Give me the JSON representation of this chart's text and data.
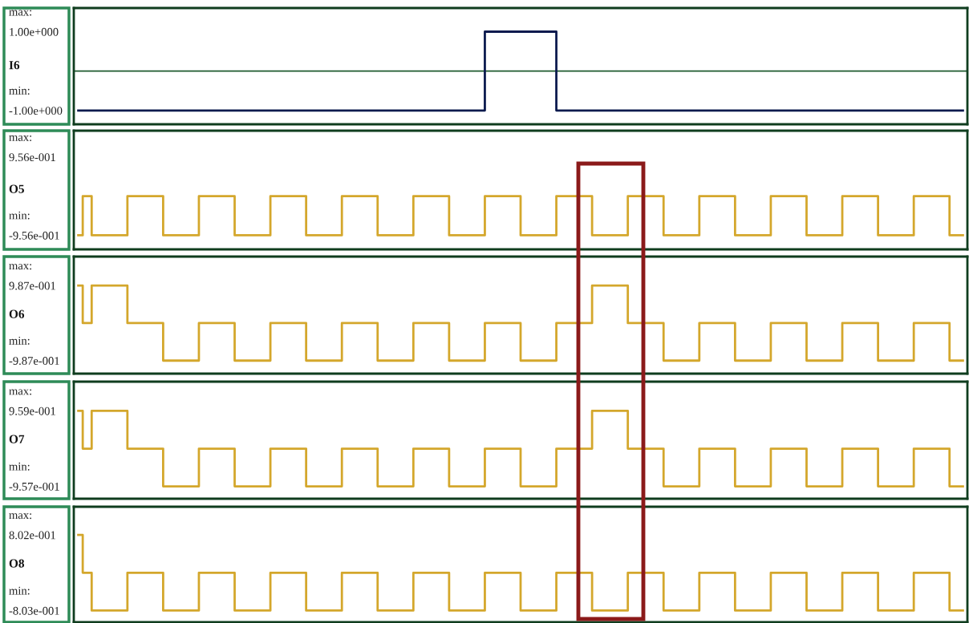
{
  "chart_data": [
    {
      "type": "step",
      "categories": [
        null,
        null,
        null,
        null,
        null,
        null,
        null,
        null,
        null,
        null,
        null,
        null,
        null,
        null,
        null,
        null,
        null,
        null,
        null,
        null,
        null,
        null,
        null,
        null,
        null,
        null,
        null,
        null,
        null,
        null,
        null,
        null,
        null,
        null,
        null,
        null,
        null,
        null,
        null,
        null,
        null,
        null,
        null,
        null,
        null,
        null,
        null,
        null,
        null,
        null,
        null,
        null,
        null,
        null,
        null,
        null,
        null,
        null,
        null,
        null,
        null,
        null,
        null,
        null,
        null,
        null,
        null,
        null,
        null,
        null,
        null,
        null,
        null,
        null,
        null,
        null,
        null,
        null,
        null,
        null,
        null,
        null,
        null,
        null,
        null,
        null,
        null,
        null,
        null,
        null,
        null,
        null,
        null,
        null,
        null,
        null,
        null,
        null,
        null,
        null
      ],
      "ylim": [
        -1.35,
        1.6
      ],
      "yticks": [
        {
          "value": 1,
          "label": "1.00e+000"
        },
        {
          "value": -1,
          "label": "-1.00e+000"
        }
      ],
      "annotations": [
        "max:",
        "min:"
      ],
      "tick_labels": "y",
      "ref_lines": [
        {
          "axis": "y",
          "value": 0,
          "color": "#1e5a2e"
        }
      ],
      "series": [
        {
          "name": "I6",
          "color": "#0b1a4e",
          "values": [
            -1,
            -1,
            -1,
            -1,
            -1,
            -1,
            -1,
            -1,
            -1,
            -1,
            -1,
            -1,
            -1,
            -1,
            -1,
            -1,
            -1,
            -1,
            -1,
            -1,
            -1,
            -1,
            -1,
            -1,
            -1,
            -1,
            -1,
            -1,
            -1,
            -1,
            -1,
            -1,
            -1,
            -1,
            -1,
            -1,
            -1,
            -1,
            -1,
            -1,
            -1,
            -1,
            -1,
            -1,
            -1,
            -1,
            1,
            1,
            1,
            1,
            1,
            1,
            1,
            1,
            -1,
            -1,
            -1,
            -1,
            -1,
            -1,
            -1,
            -1,
            -1,
            -1,
            -1,
            -1,
            -1,
            -1,
            -1,
            -1,
            -1,
            -1,
            -1,
            -1,
            -1,
            -1,
            -1,
            -1,
            -1,
            -1,
            -1,
            -1,
            -1,
            -1,
            -1,
            -1,
            -1,
            -1,
            -1,
            -1,
            -1,
            -1,
            -1,
            -1,
            -1,
            -1,
            -1,
            -1,
            -1,
            -1
          ]
        }
      ]
    },
    {
      "type": "step",
      "categories": [
        null,
        null,
        null,
        null,
        null,
        null,
        null,
        null,
        null,
        null,
        null,
        null,
        null,
        null,
        null,
        null,
        null,
        null,
        null,
        null,
        null,
        null,
        null,
        null,
        null,
        null,
        null,
        null,
        null,
        null,
        null,
        null,
        null,
        null,
        null,
        null,
        null,
        null,
        null,
        null,
        null,
        null,
        null,
        null,
        null,
        null,
        null,
        null,
        null,
        null,
        null,
        null,
        null,
        null,
        null,
        null,
        null,
        null,
        null,
        null,
        null,
        null,
        null,
        null,
        null,
        null,
        null,
        null,
        null,
        null,
        null,
        null,
        null,
        null,
        null,
        null,
        null,
        null,
        null,
        null,
        null,
        null,
        null,
        null,
        null,
        null,
        null,
        null,
        null,
        null,
        null,
        null,
        null,
        null,
        null,
        null,
        null,
        null,
        null,
        null
      ],
      "ylim": [
        -1.3,
        1.6
      ],
      "yticks": [
        {
          "value": 0.956,
          "label": "9.56e-001"
        },
        {
          "value": -0.956,
          "label": "-9.56e-001"
        }
      ],
      "annotations": [
        "max:",
        "min:"
      ],
      "tick_labels": "y",
      "series": [
        {
          "name": "O5",
          "color": "#d4a72c",
          "values": [
            -0.956,
            0,
            -0.956,
            -0.956,
            -0.956,
            -0.956,
            0,
            0,
            0,
            0,
            -0.956,
            -0.956,
            -0.956,
            -0.956,
            0,
            0,
            0,
            0,
            -0.956,
            -0.956,
            -0.956,
            -0.956,
            0,
            0,
            0,
            0,
            -0.956,
            -0.956,
            -0.956,
            -0.956,
            0,
            0,
            0,
            0,
            -0.956,
            -0.956,
            -0.956,
            -0.956,
            0,
            0,
            0,
            0,
            -0.956,
            -0.956,
            -0.956,
            -0.956,
            0,
            0,
            0,
            0,
            -0.956,
            -0.956,
            -0.956,
            -0.956,
            0,
            0,
            0,
            0,
            -0.956,
            -0.956,
            -0.956,
            -0.956,
            0,
            0,
            0,
            0,
            -0.956,
            -0.956,
            -0.956,
            -0.956,
            0,
            0,
            0,
            0,
            -0.956,
            -0.956,
            -0.956,
            -0.956,
            0,
            0,
            0,
            0,
            -0.956,
            -0.956,
            -0.956,
            -0.956,
            0,
            0,
            0,
            0,
            -0.956,
            -0.956,
            -0.956,
            -0.956,
            0,
            0,
            0,
            0,
            -0.956,
            -0.956
          ]
        }
      ]
    },
    {
      "type": "step",
      "categories": [
        null,
        null,
        null,
        null,
        null,
        null,
        null,
        null,
        null,
        null,
        null,
        null,
        null,
        null,
        null,
        null,
        null,
        null,
        null,
        null,
        null,
        null,
        null,
        null,
        null,
        null,
        null,
        null,
        null,
        null,
        null,
        null,
        null,
        null,
        null,
        null,
        null,
        null,
        null,
        null,
        null,
        null,
        null,
        null,
        null,
        null,
        null,
        null,
        null,
        null,
        null,
        null,
        null,
        null,
        null,
        null,
        null,
        null,
        null,
        null,
        null,
        null,
        null,
        null,
        null,
        null,
        null,
        null,
        null,
        null,
        null,
        null,
        null,
        null,
        null,
        null,
        null,
        null,
        null,
        null,
        null,
        null,
        null,
        null,
        null,
        null,
        null,
        null,
        null,
        null,
        null,
        null,
        null,
        null,
        null,
        null,
        null,
        null,
        null,
        null
      ],
      "ylim": [
        -1.33,
        1.75
      ],
      "yticks": [
        {
          "value": 0.987,
          "label": "9.87e-001"
        },
        {
          "value": -0.987,
          "label": "-9.87e-001"
        }
      ],
      "annotations": [
        "max:",
        "min:"
      ],
      "tick_labels": "y",
      "series": [
        {
          "name": "O6",
          "color": "#d4a72c",
          "values": [
            0.987,
            0,
            0.987,
            0.987,
            0.987,
            0.987,
            0,
            0,
            0,
            0,
            -0.987,
            -0.987,
            -0.987,
            -0.987,
            0,
            0,
            0,
            0,
            -0.987,
            -0.987,
            -0.987,
            -0.987,
            0,
            0,
            0,
            0,
            -0.987,
            -0.987,
            -0.987,
            -0.987,
            0,
            0,
            0,
            0,
            -0.987,
            -0.987,
            -0.987,
            -0.987,
            0,
            0,
            0,
            0,
            -0.987,
            -0.987,
            -0.987,
            -0.987,
            0,
            0,
            0,
            0,
            -0.987,
            -0.987,
            -0.987,
            -0.987,
            0,
            0,
            0,
            0,
            0.987,
            0.987,
            0.987,
            0.987,
            0,
            0,
            0,
            0,
            -0.987,
            -0.987,
            -0.987,
            -0.987,
            0,
            0,
            0,
            0,
            -0.987,
            -0.987,
            -0.987,
            -0.987,
            0,
            0,
            0,
            0,
            -0.987,
            -0.987,
            -0.987,
            -0.987,
            0,
            0,
            0,
            0,
            -0.987,
            -0.987,
            -0.987,
            -0.987,
            0,
            0,
            0,
            0,
            -0.987,
            -0.987
          ]
        }
      ]
    },
    {
      "type": "step",
      "categories": [
        null,
        null,
        null,
        null,
        null,
        null,
        null,
        null,
        null,
        null,
        null,
        null,
        null,
        null,
        null,
        null,
        null,
        null,
        null,
        null,
        null,
        null,
        null,
        null,
        null,
        null,
        null,
        null,
        null,
        null,
        null,
        null,
        null,
        null,
        null,
        null,
        null,
        null,
        null,
        null,
        null,
        null,
        null,
        null,
        null,
        null,
        null,
        null,
        null,
        null,
        null,
        null,
        null,
        null,
        null,
        null,
        null,
        null,
        null,
        null,
        null,
        null,
        null,
        null,
        null,
        null,
        null,
        null,
        null,
        null,
        null,
        null,
        null,
        null,
        null,
        null,
        null,
        null,
        null,
        null,
        null,
        null,
        null,
        null,
        null,
        null,
        null,
        null,
        null,
        null,
        null,
        null,
        null,
        null,
        null,
        null,
        null,
        null,
        null,
        null
      ],
      "ylim": [
        -1.27,
        1.7
      ],
      "yticks": [
        {
          "value": 0.959,
          "label": "9.59e-001"
        },
        {
          "value": -0.957,
          "label": "-9.57e-001"
        }
      ],
      "annotations": [
        "max:",
        "min:"
      ],
      "tick_labels": "y",
      "series": [
        {
          "name": "O7",
          "color": "#d4a72c",
          "values": [
            0.959,
            0,
            0.959,
            0.959,
            0.959,
            0.959,
            0,
            0,
            0,
            0,
            -0.957,
            -0.957,
            -0.957,
            -0.957,
            0,
            0,
            0,
            0,
            -0.957,
            -0.957,
            -0.957,
            -0.957,
            0,
            0,
            0,
            0,
            -0.957,
            -0.957,
            -0.957,
            -0.957,
            0,
            0,
            0,
            0,
            -0.957,
            -0.957,
            -0.957,
            -0.957,
            0,
            0,
            0,
            0,
            -0.957,
            -0.957,
            -0.957,
            -0.957,
            0,
            0,
            0,
            0,
            -0.957,
            -0.957,
            -0.957,
            -0.957,
            0,
            0,
            0,
            0,
            0.959,
            0.959,
            0.959,
            0.959,
            0,
            0,
            0,
            0,
            -0.957,
            -0.957,
            -0.957,
            -0.957,
            0,
            0,
            0,
            0,
            -0.957,
            -0.957,
            -0.957,
            -0.957,
            0,
            0,
            0,
            0,
            -0.957,
            -0.957,
            -0.957,
            -0.957,
            0,
            0,
            0,
            0,
            -0.957,
            -0.957,
            -0.957,
            -0.957,
            0,
            0,
            0,
            0,
            -0.957,
            -0.957
          ]
        }
      ]
    },
    {
      "type": "step",
      "categories": [
        null,
        null,
        null,
        null,
        null,
        null,
        null,
        null,
        null,
        null,
        null,
        null,
        null,
        null,
        null,
        null,
        null,
        null,
        null,
        null,
        null,
        null,
        null,
        null,
        null,
        null,
        null,
        null,
        null,
        null,
        null,
        null,
        null,
        null,
        null,
        null,
        null,
        null,
        null,
        null,
        null,
        null,
        null,
        null,
        null,
        null,
        null,
        null,
        null,
        null,
        null,
        null,
        null,
        null,
        null,
        null,
        null,
        null,
        null,
        null,
        null,
        null,
        null,
        null,
        null,
        null,
        null,
        null,
        null,
        null,
        null,
        null,
        null,
        null,
        null,
        null,
        null,
        null,
        null,
        null,
        null,
        null,
        null,
        null,
        null,
        null,
        null,
        null,
        null,
        null,
        null,
        null,
        null,
        null,
        null,
        null,
        null,
        null,
        null,
        null
      ],
      "ylim": [
        -1.05,
        1.4
      ],
      "yticks": [
        {
          "value": 0.802,
          "label": "8.02e-001"
        },
        {
          "value": -0.803,
          "label": "-8.03e-001"
        }
      ],
      "annotations": [
        "max:",
        "min:"
      ],
      "tick_labels": "y",
      "series": [
        {
          "name": "O8",
          "color": "#d4a72c",
          "values": [
            0.802,
            0,
            -0.803,
            -0.803,
            -0.803,
            -0.803,
            0,
            0,
            0,
            0,
            -0.803,
            -0.803,
            -0.803,
            -0.803,
            0,
            0,
            0,
            0,
            -0.803,
            -0.803,
            -0.803,
            -0.803,
            0,
            0,
            0,
            0,
            -0.803,
            -0.803,
            -0.803,
            -0.803,
            0,
            0,
            0,
            0,
            -0.803,
            -0.803,
            -0.803,
            -0.803,
            0,
            0,
            0,
            0,
            -0.803,
            -0.803,
            -0.803,
            -0.803,
            0,
            0,
            0,
            0,
            -0.803,
            -0.803,
            -0.803,
            -0.803,
            0,
            0,
            0,
            0,
            -0.803,
            -0.803,
            -0.803,
            -0.803,
            0,
            0,
            0,
            0,
            -0.803,
            -0.803,
            -0.803,
            -0.803,
            0,
            0,
            0,
            0,
            -0.803,
            -0.803,
            -0.803,
            -0.803,
            0,
            0,
            0,
            0,
            -0.803,
            -0.803,
            -0.803,
            -0.803,
            0,
            0,
            0,
            0,
            -0.803,
            -0.803,
            -0.803,
            -0.803,
            0,
            0,
            0,
            0,
            -0.803,
            -0.803
          ]
        }
      ]
    }
  ]
}
